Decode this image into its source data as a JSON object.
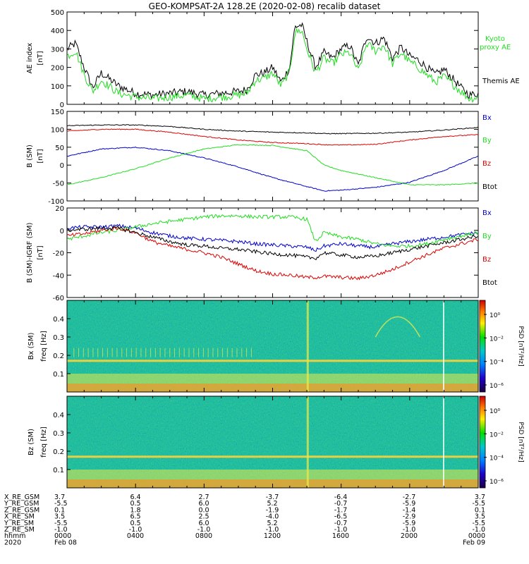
{
  "title": "GEO-KOMPSAT-2A 128.2E (2020-02-08) recalib dataset",
  "colors": {
    "black": "#000000",
    "green": "#22dd22",
    "blue": "#0000cc",
    "red": "#dd0000"
  },
  "chart_data": [
    {
      "type": "line",
      "ylabel": "AE index",
      "yunit": "[nT]",
      "ylim": [
        0,
        500
      ],
      "yticks": [
        0,
        100,
        200,
        300,
        400,
        500
      ],
      "x_hours": [
        0,
        0.5,
        1,
        1.5,
        2,
        3,
        4,
        5,
        6,
        7,
        8,
        9,
        10,
        10.5,
        11,
        11.5,
        12,
        12.5,
        13,
        13.3,
        13.7,
        14,
        14.5,
        15,
        15.5,
        16,
        16.5,
        17,
        17.5,
        18,
        18.5,
        19,
        19.5,
        20,
        20.5,
        21,
        21.5,
        22,
        22.5,
        23,
        23.5,
        24
      ],
      "series": [
        {
          "name": "Themis AE",
          "color": "#000000",
          "values": [
            300,
            330,
            200,
            90,
            170,
            100,
            60,
            50,
            60,
            70,
            50,
            60,
            70,
            80,
            160,
            170,
            200,
            120,
            200,
            420,
            430,
            340,
            200,
            280,
            250,
            300,
            320,
            210,
            370,
            330,
            360,
            250,
            310,
            260,
            240,
            200,
            160,
            190,
            140,
            90,
            50,
            60
          ]
        },
        {
          "name": "Kyoto proxy AE",
          "color": "#22dd22",
          "values": [
            260,
            290,
            160,
            70,
            130,
            60,
            40,
            30,
            40,
            50,
            30,
            40,
            50,
            60,
            130,
            140,
            170,
            100,
            180,
            390,
            400,
            300,
            170,
            250,
            220,
            270,
            280,
            180,
            330,
            290,
            320,
            220,
            280,
            230,
            200,
            160,
            120,
            150,
            110,
            70,
            30,
            40
          ]
        }
      ]
    },
    {
      "type": "line",
      "ylabel": "B (SM)",
      "yunit": "[nT]",
      "ylim": [
        -100,
        150
      ],
      "yticks": [
        -100,
        -50,
        0,
        50,
        100,
        150
      ],
      "x_hours": [
        0,
        2,
        4,
        6,
        8,
        10,
        12,
        14,
        15,
        16,
        18,
        20,
        22,
        24
      ],
      "series": [
        {
          "name": "Bx",
          "color": "#0000cc",
          "values": [
            25,
            45,
            50,
            40,
            20,
            -5,
            -35,
            -60,
            -72,
            -70,
            -62,
            -48,
            -15,
            25
          ]
        },
        {
          "name": "By",
          "color": "#22dd22",
          "values": [
            -55,
            -35,
            -10,
            20,
            45,
            57,
            55,
            40,
            0,
            -15,
            -35,
            -55,
            -55,
            -50
          ]
        },
        {
          "name": "Bz",
          "color": "#dd0000",
          "values": [
            95,
            100,
            100,
            92,
            80,
            70,
            63,
            60,
            57,
            56,
            58,
            70,
            80,
            85
          ]
        },
        {
          "name": "Btot",
          "color": "#000000",
          "values": [
            110,
            112,
            112,
            108,
            100,
            95,
            92,
            90,
            88,
            88,
            89,
            92,
            98,
            105
          ]
        }
      ]
    },
    {
      "type": "line",
      "ylabel": "B (SM)-IGRF (SM)",
      "yunit": "[nT]",
      "ylim": [
        -60,
        20
      ],
      "yticks": [
        -60,
        -40,
        -20,
        0,
        20
      ],
      "x_hours": [
        0,
        1,
        2,
        3,
        4,
        5,
        6,
        7,
        8,
        9,
        10,
        11,
        12,
        13,
        14,
        14.5,
        15,
        16,
        17,
        18,
        19,
        20,
        21,
        22,
        23,
        24
      ],
      "series": [
        {
          "name": "Bx",
          "color": "#0000cc",
          "values": [
            2,
            3,
            3,
            4,
            2,
            -2,
            -5,
            -7,
            -8,
            -9,
            -10,
            -12,
            -13,
            -14,
            -15,
            -18,
            -14,
            -12,
            -14,
            -15,
            -12,
            -10,
            -8,
            -6,
            -4,
            -2
          ]
        },
        {
          "name": "By",
          "color": "#22dd22",
          "values": [
            -8,
            -5,
            -2,
            0,
            3,
            6,
            8,
            10,
            12,
            13,
            13,
            12,
            12,
            12,
            10,
            -10,
            -2,
            -6,
            -8,
            -12,
            -14,
            -14,
            -12,
            -8,
            -5,
            -2
          ]
        },
        {
          "name": "Bz",
          "color": "#dd0000",
          "values": [
            -5,
            -3,
            0,
            2,
            -2,
            -10,
            -14,
            -17,
            -20,
            -24,
            -30,
            -36,
            -39,
            -40,
            -42,
            -42,
            -41,
            -42,
            -43,
            -40,
            -35,
            -28,
            -22,
            -16,
            -12,
            -8
          ]
        },
        {
          "name": "Btot",
          "color": "#000000",
          "values": [
            0,
            1,
            2,
            2,
            -2,
            -6,
            -10,
            -13,
            -14,
            -16,
            -17,
            -19,
            -21,
            -22,
            -24,
            -25,
            -20,
            -22,
            -24,
            -23,
            -20,
            -17,
            -14,
            -11,
            -8,
            -5
          ]
        }
      ]
    },
    {
      "type": "heatmap",
      "ylabel": "Bx (SM)",
      "yunit": "freq [Hz]",
      "ylim": [
        0,
        0.5
      ],
      "yticks": [
        0.1,
        0.2,
        0.3,
        0.4
      ],
      "ytick_labels": [
        "0.1",
        "0.2",
        "0.3",
        "0.4"
      ],
      "colorbar_label": "PSD [nT²/Hz]",
      "colorbar_ticks": [
        "10⁰",
        "10⁻²",
        "10⁻⁴",
        "10⁻⁶"
      ]
    },
    {
      "type": "heatmap",
      "ylabel": "Bz (SM)",
      "yunit": "freq [Hz]",
      "ylim": [
        0,
        0.5
      ],
      "yticks": [
        0.1,
        0.2,
        0.3,
        0.4
      ],
      "ytick_labels": [
        "0.1",
        "0.2",
        "0.3",
        "0.4"
      ],
      "colorbar_label": "PSD [nT²/Hz]",
      "colorbar_ticks": [
        "10⁰",
        "10⁻²",
        "10⁻⁴",
        "10⁻⁶"
      ]
    }
  ],
  "ephemeris": {
    "row_labels": [
      "X_RE_GSM",
      "Y_RE_GSM",
      "Z_RE_GSM",
      "X_RE_SM",
      "Y_RE_SM",
      "Z_RE_SM",
      "hhmm",
      "2020"
    ],
    "columns": [
      [
        "3.7",
        "-5.5",
        "0.1",
        "3.5",
        "-5.5",
        "-1.0",
        "0000",
        "Feb 08"
      ],
      [
        "6.4",
        "0.5",
        "1.8",
        "6.5",
        "0.5",
        "-1.0",
        "0400",
        ""
      ],
      [
        "2.7",
        "6.0",
        "0.0",
        "2.5",
        "6.0",
        "-1.0",
        "0800",
        ""
      ],
      [
        "-3.7",
        "5.2",
        "-1.9",
        "-4.0",
        "5.2",
        "-1.0",
        "1200",
        ""
      ],
      [
        "-6.4",
        "-0.7",
        "-1.7",
        "-6.5",
        "-0.7",
        "-1.0",
        "1600",
        ""
      ],
      [
        "-2.7",
        "-5.9",
        "-1.4",
        "-2.9",
        "-5.9",
        "-1.0",
        "2000",
        ""
      ],
      [
        "3.7",
        "-5.5",
        "0.1",
        "3.5",
        "-5.5",
        "-1.0",
        "0000",
        "Feb 09"
      ]
    ]
  }
}
